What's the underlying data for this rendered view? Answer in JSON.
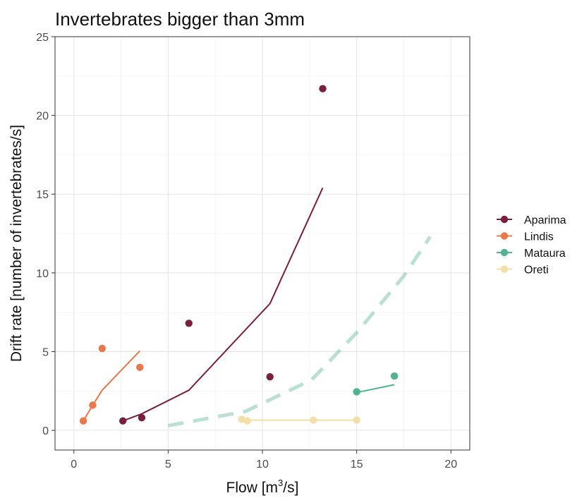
{
  "chart_data": {
    "type": "scatter",
    "title": "Invertebrates bigger than 3mm",
    "xlabel_main": "Flow [m",
    "xlabel_sup": "3",
    "xlabel_tail": "/s]",
    "ylabel": "Drift rate [number of invertebrates/s]",
    "xlim": [
      -1,
      21
    ],
    "ylim": [
      -1.25,
      25
    ],
    "xticks": [
      0,
      5,
      10,
      15,
      20
    ],
    "yticks": [
      0,
      5,
      10,
      15,
      20,
      25
    ],
    "grid": true,
    "legend_position": "right",
    "series": [
      {
        "name": "Aparima",
        "color": "#7b1f3f",
        "points": [
          [
            2.6,
            0.6
          ],
          [
            3.6,
            0.8
          ],
          [
            6.1,
            6.8
          ],
          [
            10.4,
            3.4
          ],
          [
            13.2,
            21.7
          ]
        ],
        "fit": [
          [
            2.6,
            0.6
          ],
          [
            3.6,
            1.05
          ],
          [
            6.1,
            2.55
          ],
          [
            10.4,
            8.05
          ],
          [
            13.2,
            15.4
          ]
        ],
        "fit_style": "solid"
      },
      {
        "name": "Lindis",
        "color": "#e8784a",
        "points": [
          [
            0.5,
            0.6
          ],
          [
            1.0,
            1.6
          ],
          [
            1.5,
            5.2
          ],
          [
            3.5,
            4.0
          ]
        ],
        "fit": [
          [
            0.5,
            0.6
          ],
          [
            1.0,
            1.6
          ],
          [
            1.5,
            2.55
          ],
          [
            3.5,
            5.05
          ]
        ],
        "fit_style": "solid"
      },
      {
        "name": "Mataura",
        "color": "#52b292",
        "points": [
          [
            15.0,
            2.45
          ],
          [
            17.0,
            3.45
          ]
        ],
        "fit": [
          [
            15.0,
            2.4
          ],
          [
            17.0,
            2.9
          ]
        ],
        "fit_style": "solid"
      },
      {
        "name": "Mataura",
        "color": "#52b292",
        "points": [],
        "fit": [
          [
            5.0,
            0.3
          ],
          [
            9.1,
            1.2
          ],
          [
            12.6,
            3.2
          ],
          [
            15.0,
            6.2
          ],
          [
            17.5,
            9.8
          ],
          [
            18.9,
            12.3
          ]
        ],
        "fit_style": "dashed",
        "fit_opacity": 0.4,
        "show_in_legend": false
      },
      {
        "name": "Oreti",
        "color": "#f2e0a6",
        "points": [
          [
            8.9,
            0.7
          ],
          [
            9.2,
            0.6
          ],
          [
            12.7,
            0.65
          ],
          [
            15.0,
            0.65
          ]
        ],
        "fit": [
          [
            8.9,
            0.65
          ],
          [
            15.0,
            0.65
          ]
        ],
        "fit_style": "solid"
      }
    ]
  }
}
